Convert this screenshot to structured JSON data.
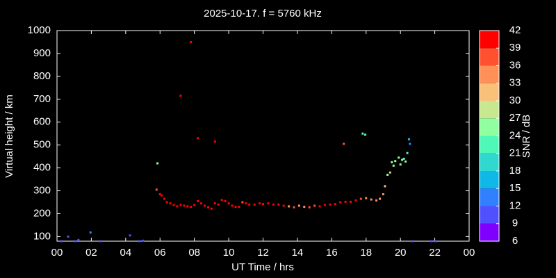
{
  "chart_data": {
    "type": "scatter",
    "title": "2025-10-17. f = 5760 kHz",
    "x_label": "UT Time / hrs",
    "y_label": "Virtual height / km",
    "xlim": [
      0,
      24
    ],
    "xticks": [
      {
        "value": 0,
        "label": "00"
      },
      {
        "value": 2,
        "label": "02"
      },
      {
        "value": 4,
        "label": "04"
      },
      {
        "value": 6,
        "label": "06"
      },
      {
        "value": 8,
        "label": "08"
      },
      10,
      12,
      14,
      16,
      18,
      20,
      22,
      {
        "value": 24,
        "label": "00"
      }
    ],
    "ylim": [
      80,
      1000
    ],
    "yticks": [
      100,
      200,
      300,
      400,
      500,
      600,
      700,
      800,
      900,
      1000
    ],
    "x": [
      0.25,
      0.65,
      1.05,
      1.25,
      1.95,
      2.55,
      4.25,
      4.8,
      5.0,
      20.7,
      21.8,
      22.05,
      5.8,
      6.0,
      6.1,
      6.25,
      6.4,
      6.6,
      6.8,
      7.0,
      7.2,
      7.4,
      7.6,
      7.8,
      8.0,
      8.2,
      8.4,
      8.6,
      8.8,
      9.0,
      9.2,
      9.4,
      9.6,
      9.8,
      10.0,
      10.2,
      10.4,
      10.6,
      10.8,
      11.0,
      11.2,
      11.5,
      11.8,
      12.0,
      12.3,
      12.6,
      12.9,
      13.2,
      13.5,
      13.8,
      14.1,
      14.4,
      14.7,
      15.0,
      15.3,
      15.6,
      15.9,
      16.2,
      16.5,
      16.8,
      17.1,
      17.4,
      17.7,
      18.0,
      18.3,
      18.6,
      18.8,
      19.0,
      19.1,
      19.25,
      19.4,
      19.5,
      19.6,
      19.7,
      19.9,
      20.0,
      20.1,
      20.2,
      20.3,
      20.4,
      20.5,
      20.55,
      5.85,
      7.8,
      7.2,
      8.2,
      9.2,
      16.7,
      17.8,
      17.95
    ],
    "values": [
      80,
      100,
      80,
      85,
      118,
      80,
      105,
      80,
      82,
      80,
      80,
      80,
      305,
      285,
      280,
      265,
      250,
      245,
      238,
      232,
      238,
      235,
      232,
      230,
      238,
      255,
      245,
      235,
      228,
      222,
      245,
      240,
      260,
      255,
      245,
      235,
      230,
      230,
      250,
      245,
      240,
      240,
      245,
      242,
      245,
      240,
      240,
      235,
      232,
      228,
      235,
      230,
      228,
      235,
      232,
      238,
      240,
      242,
      250,
      252,
      252,
      258,
      265,
      268,
      262,
      258,
      265,
      285,
      320,
      370,
      380,
      425,
      410,
      430,
      445,
      415,
      435,
      440,
      428,
      465,
      525,
      505,
      420,
      950,
      715,
      530,
      515,
      505,
      550,
      545
    ],
    "color_values": [
      10,
      11,
      10,
      10,
      13,
      10,
      11,
      10,
      11,
      11,
      10,
      11,
      38,
      40,
      40,
      40,
      41,
      40,
      40,
      41,
      40,
      40,
      41,
      40,
      40,
      41,
      40,
      40,
      41,
      40,
      40,
      41,
      40,
      40,
      41,
      40,
      40,
      41,
      38,
      40,
      40,
      40,
      40,
      40,
      40,
      40,
      40,
      40,
      35,
      37,
      33,
      35,
      37,
      38,
      40,
      40,
      40,
      40,
      40,
      40,
      40,
      40,
      36,
      34,
      35,
      35,
      34,
      34,
      31,
      25,
      31,
      25,
      24,
      25,
      25,
      24,
      25,
      23,
      24,
      23,
      16,
      13,
      26,
      41,
      39,
      40,
      40,
      37,
      22,
      23
    ],
    "colorbar": {
      "label": "SNR / dB",
      "lim": [
        6,
        42
      ],
      "ticks": [
        6,
        9,
        12,
        15,
        18,
        21,
        24,
        27,
        30,
        33,
        36,
        39,
        42
      ],
      "colors": [
        "#8000ff",
        "#5050ff",
        "#3080ff",
        "#10b8e8",
        "#30d8d0",
        "#50f8b8",
        "#90ffa0",
        "#c8e890",
        "#f8c078",
        "#ff9058",
        "#ff5030",
        "#ff0000"
      ]
    },
    "background": "#000000",
    "foreground": "#ffffff"
  }
}
